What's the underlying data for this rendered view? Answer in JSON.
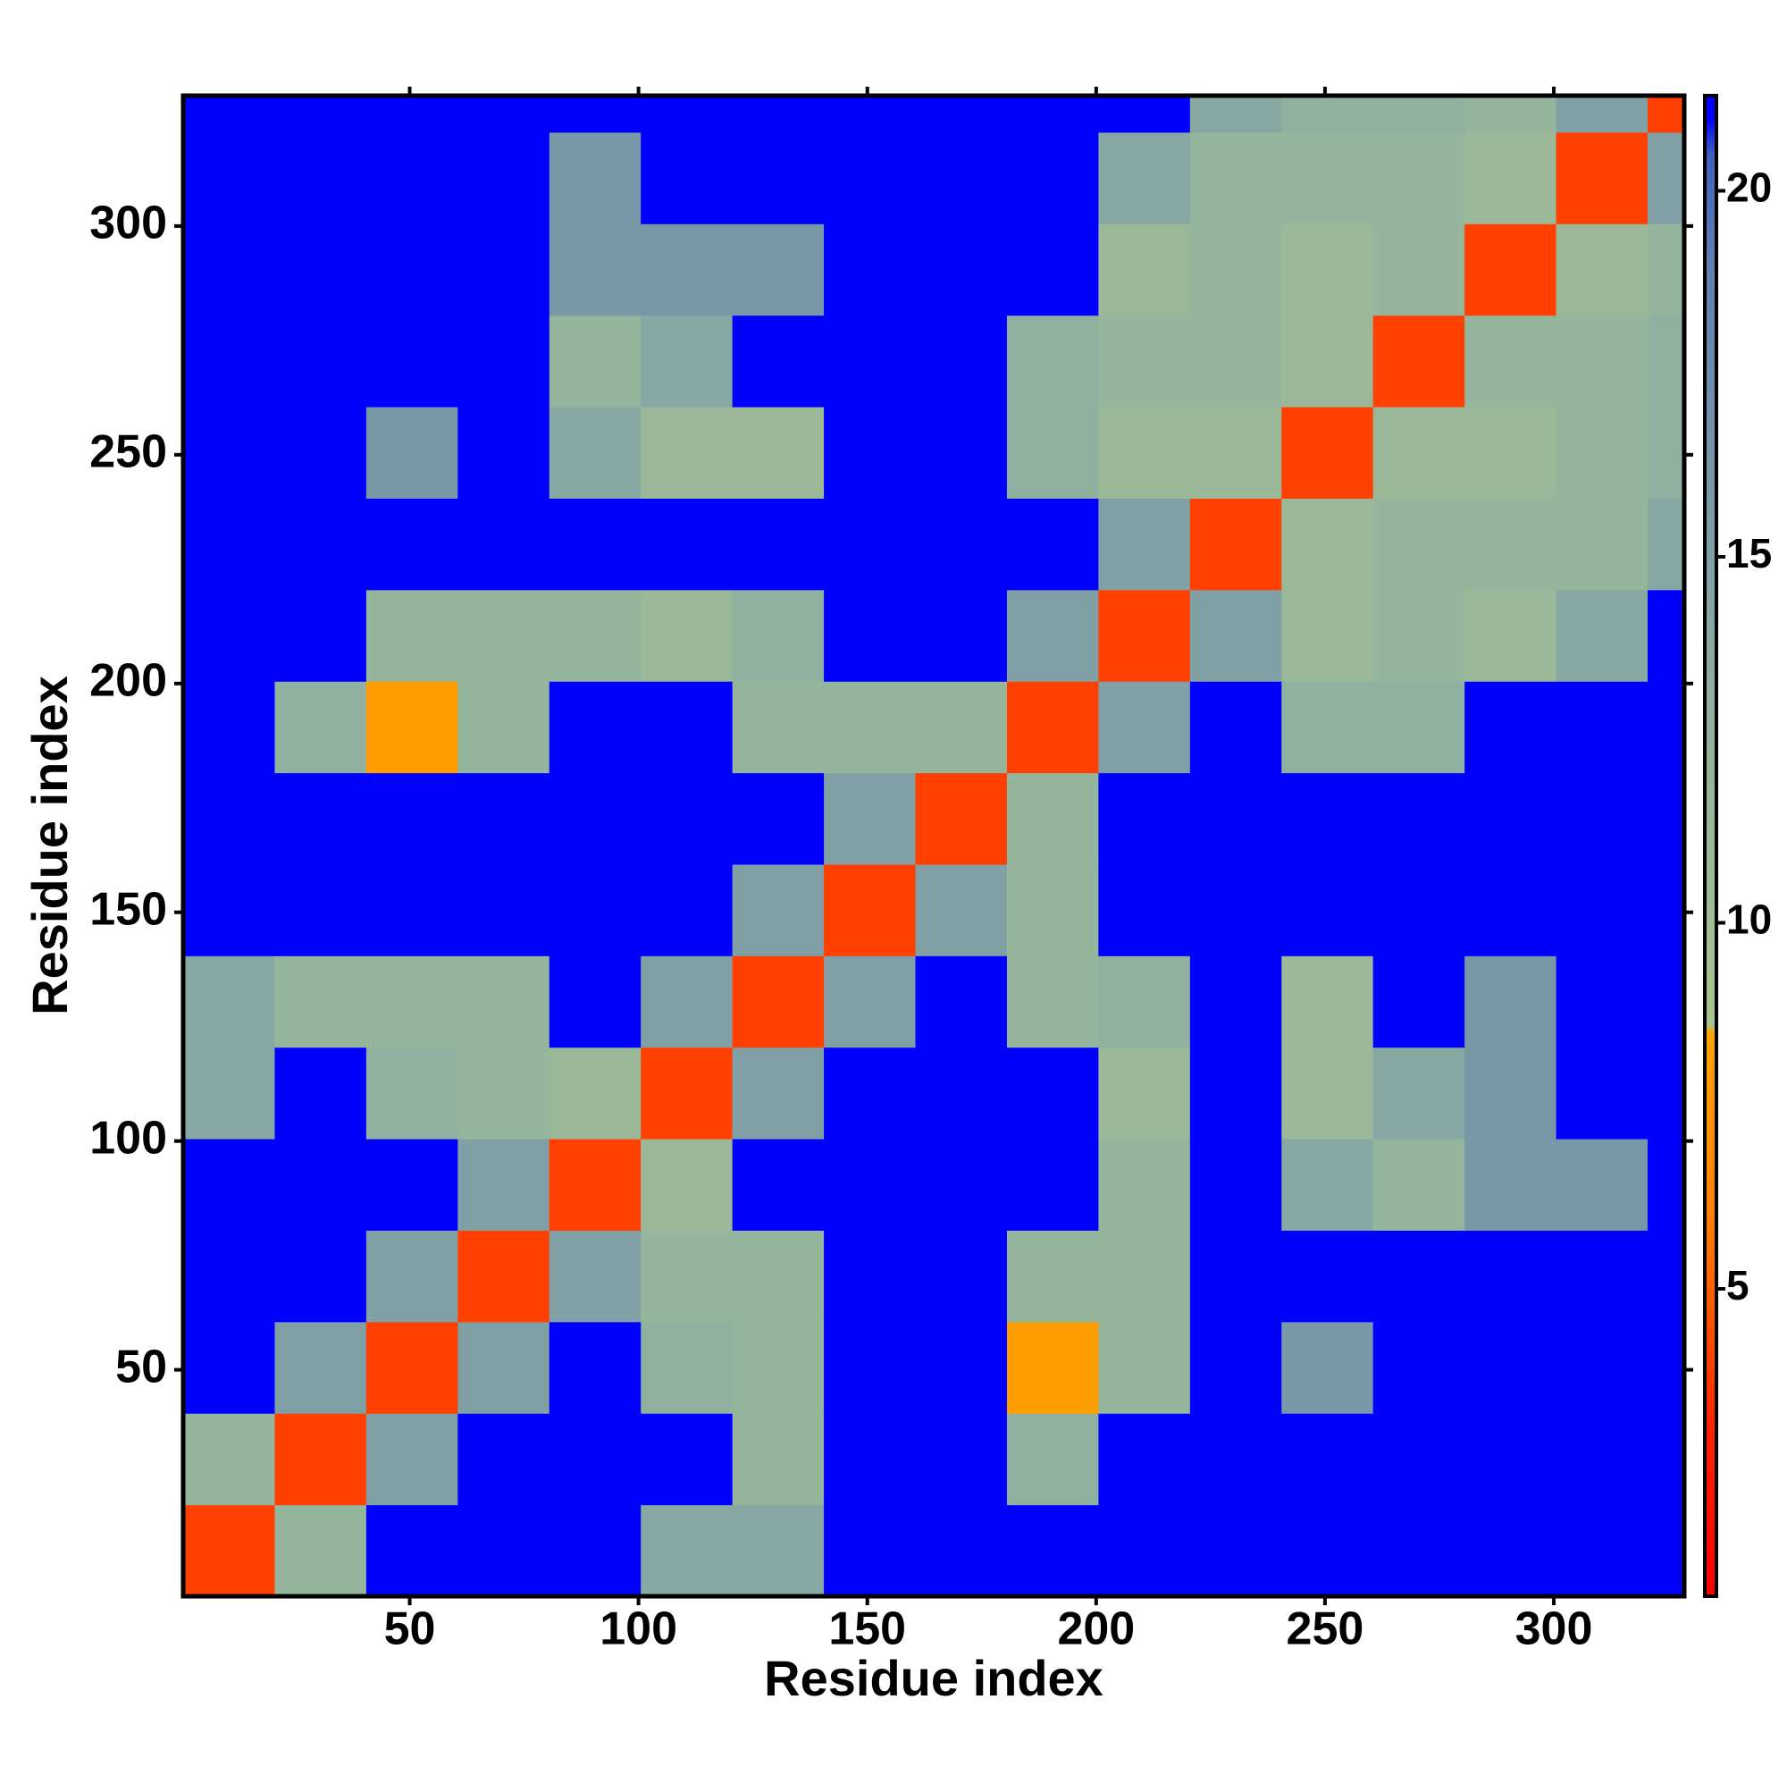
{
  "chart_data": {
    "type": "heatmap",
    "xlabel": "Residue index",
    "ylabel": "Residue index",
    "xbins": [
      0.5,
      20.5,
      40.5,
      60.5,
      80.5,
      100.5,
      120.5,
      140.5,
      160.5,
      180.5,
      200.5,
      220.5,
      240.5,
      260.5,
      280.5,
      300.5,
      320.5,
      328.5
    ],
    "ybins": [
      0.5,
      20.5,
      40.5,
      60.5,
      80.5,
      100.5,
      120.5,
      140.5,
      160.5,
      180.5,
      200.5,
      220.5,
      240.5,
      260.5,
      280.5,
      300.5,
      320.5,
      328.5
    ],
    "values": [
      [
        4,
        12,
        21,
        21,
        21,
        14,
        14,
        21,
        21,
        21,
        21,
        21,
        21,
        21,
        21,
        21,
        21
      ],
      [
        12,
        4,
        15,
        21,
        21,
        21,
        12,
        21,
        21,
        13,
        21,
        21,
        21,
        21,
        21,
        21,
        21
      ],
      [
        21,
        15,
        4,
        15,
        21,
        13,
        12,
        21,
        21,
        8,
        12,
        21,
        16,
        21,
        21,
        21,
        21
      ],
      [
        21,
        21,
        15,
        4,
        15,
        12,
        12,
        21,
        21,
        12,
        12,
        21,
        21,
        21,
        21,
        21,
        21
      ],
      [
        21,
        21,
        21,
        15,
        4,
        11,
        21,
        21,
        21,
        21,
        12,
        21,
        14,
        12,
        16,
        16,
        21
      ],
      [
        14,
        21,
        13,
        12,
        11,
        4,
        15,
        21,
        21,
        21,
        11,
        21,
        11,
        14,
        16,
        21,
        21
      ],
      [
        14,
        12,
        12,
        12,
        21,
        15,
        4,
        15,
        21,
        12,
        13,
        21,
        11,
        21,
        16,
        21,
        21
      ],
      [
        21,
        21,
        21,
        21,
        21,
        21,
        15,
        4,
        15,
        12,
        21,
        21,
        21,
        21,
        21,
        21,
        21
      ],
      [
        21,
        21,
        21,
        21,
        21,
        21,
        21,
        15,
        4,
        12,
        21,
        21,
        21,
        21,
        21,
        21,
        21
      ],
      [
        21,
        13,
        8,
        12,
        21,
        21,
        12,
        12,
        12,
        4,
        15,
        21,
        13,
        13,
        21,
        21,
        21
      ],
      [
        21,
        21,
        12,
        12,
        12,
        11,
        13,
        21,
        21,
        15,
        4,
        15,
        11,
        12,
        11,
        14,
        21
      ],
      [
        21,
        21,
        21,
        21,
        21,
        21,
        21,
        21,
        21,
        21,
        15,
        4,
        11,
        12,
        12,
        12,
        14
      ],
      [
        21,
        21,
        16,
        21,
        14,
        11,
        11,
        21,
        21,
        13,
        11,
        11,
        4,
        11,
        11,
        12,
        13
      ],
      [
        21,
        21,
        21,
        21,
        12,
        14,
        21,
        21,
        21,
        13,
        12,
        12,
        11,
        4,
        12,
        12,
        13
      ],
      [
        21,
        21,
        21,
        21,
        16,
        16,
        16,
        21,
        21,
        21,
        11,
        12,
        11,
        12,
        4,
        11,
        12
      ],
      [
        21,
        21,
        21,
        21,
        16,
        21,
        21,
        21,
        21,
        21,
        14,
        12,
        12,
        12,
        11,
        4,
        15
      ],
      [
        21,
        21,
        21,
        21,
        21,
        21,
        21,
        21,
        21,
        21,
        21,
        14,
        13,
        13,
        12,
        15,
        4
      ]
    ],
    "xlim": [
      0.5,
      328.5
    ],
    "ylim": [
      0.5,
      328.5
    ],
    "xticks": [
      50,
      100,
      150,
      200,
      250,
      300
    ],
    "yticks": [
      50,
      100,
      150,
      200,
      250,
      300
    ],
    "clim": [
      0.8,
      21.3
    ],
    "cticks": [
      5,
      10,
      15,
      20
    ],
    "colorscale": [
      [
        0.8,
        "#ff0000"
      ],
      [
        3,
        "#ff2000"
      ],
      [
        6,
        "#ff8000"
      ],
      [
        8.5,
        "#ffa500"
      ],
      [
        8.6,
        "#a8c490"
      ],
      [
        13,
        "#90b0a0"
      ],
      [
        19,
        "#6080b0"
      ],
      [
        20.5,
        "#4060c0"
      ],
      [
        21,
        "#0000ff"
      ]
    ],
    "grid": false
  }
}
